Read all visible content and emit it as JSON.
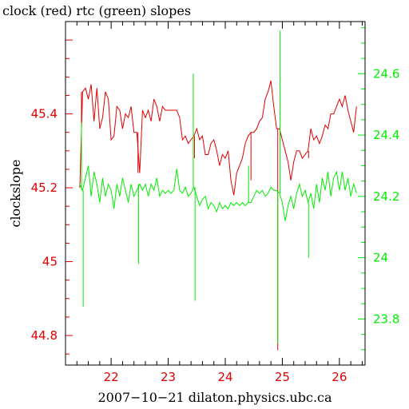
{
  "chart_data": {
    "type": "line",
    "title": "clock (red) rtc (green) slopes",
    "xlabel": "2007−10−21 dilaton.physics.ubc.ca",
    "ylabel": "clockslope",
    "xlim": [
      21.2,
      26.45
    ],
    "ylim_left": [
      44.72,
      45.65
    ],
    "ylim_right": [
      23.65,
      24.77
    ],
    "x_ticks": [
      22,
      23,
      24,
      25,
      26
    ],
    "y_ticks_left": [
      44.8,
      45,
      45.2,
      45.4
    ],
    "y_tick_labels_left": [
      "44.8",
      "45",
      "45.2",
      "45.4"
    ],
    "y_ticks_right": [
      23.8,
      24,
      24.2,
      24.4,
      24.6
    ],
    "y_tick_labels_right": [
      "23.8",
      "24",
      "24.2",
      "24.4",
      "24.6"
    ],
    "colors": {
      "clock": "#e00000",
      "rtc": "#00ee00",
      "frame": "#000000"
    },
    "series": [
      {
        "name": "clock",
        "axis": "left",
        "color": "#e00000",
        "x": [
          21.45,
          21.5,
          21.55,
          21.6,
          21.65,
          21.7,
          21.75,
          21.8,
          21.85,
          21.9,
          21.95,
          22.0,
          22.05,
          22.1,
          22.15,
          22.2,
          22.25,
          22.3,
          22.35,
          22.4,
          22.45,
          22.5,
          22.55,
          22.6,
          22.65,
          22.7,
          22.75,
          22.8,
          22.85,
          22.9,
          22.95,
          23.0,
          23.05,
          23.1,
          23.15,
          23.2,
          23.25,
          23.3,
          23.35,
          23.4,
          23.45,
          23.5,
          23.55,
          23.6,
          23.65,
          23.7,
          23.75,
          23.8,
          23.85,
          23.9,
          23.95,
          24.0,
          24.05,
          24.1,
          24.15,
          24.2,
          24.25,
          24.3,
          24.35,
          24.4,
          24.45,
          24.5,
          24.55,
          24.6,
          24.65,
          24.7,
          24.75,
          24.8,
          24.85,
          24.9,
          24.95,
          25.0,
          25.05,
          25.1,
          25.15,
          25.2,
          25.25,
          25.3,
          25.35,
          25.4,
          25.45,
          25.5,
          25.55,
          25.6,
          25.65,
          25.7,
          25.75,
          25.8,
          25.85,
          25.9,
          25.95,
          26.0,
          26.05,
          26.1,
          26.15,
          26.2,
          26.25,
          26.3
        ],
        "y": [
          45.2,
          45.46,
          45.47,
          45.44,
          45.48,
          45.38,
          45.47,
          45.36,
          45.39,
          45.46,
          45.44,
          45.33,
          45.34,
          45.42,
          45.41,
          45.36,
          45.4,
          45.39,
          45.42,
          45.35,
          45.35,
          45.24,
          45.41,
          45.39,
          45.41,
          45.38,
          45.44,
          45.42,
          45.38,
          45.42,
          45.41,
          45.41,
          45.41,
          45.41,
          45.41,
          45.39,
          45.33,
          45.34,
          45.32,
          45.33,
          45.34,
          45.36,
          45.33,
          45.34,
          45.29,
          45.29,
          45.32,
          45.33,
          45.3,
          45.26,
          45.29,
          45.28,
          45.3,
          45.22,
          45.18,
          45.24,
          45.26,
          45.28,
          45.32,
          45.34,
          45.35,
          45.35,
          45.36,
          45.38,
          45.39,
          45.44,
          45.46,
          45.49,
          45.42,
          45.36,
          45.36,
          45.33,
          45.3,
          45.27,
          45.22,
          45.27,
          45.3,
          45.3,
          45.28,
          45.29,
          45.3,
          45.36,
          45.33,
          45.34,
          45.32,
          45.34,
          45.37,
          45.36,
          45.4,
          45.4,
          45.42,
          45.44,
          45.42,
          45.45,
          45.41,
          45.38,
          45.35,
          45.42
        ]
      },
      {
        "name": "rtc",
        "axis": "right",
        "color": "#00ee00",
        "x": [
          21.45,
          21.5,
          21.55,
          21.6,
          21.65,
          21.7,
          21.75,
          21.8,
          21.85,
          21.9,
          21.95,
          22.0,
          22.05,
          22.1,
          22.15,
          22.2,
          22.25,
          22.3,
          22.35,
          22.4,
          22.45,
          22.5,
          22.55,
          22.6,
          22.65,
          22.7,
          22.75,
          22.8,
          22.85,
          22.9,
          22.95,
          23.0,
          23.05,
          23.1,
          23.15,
          23.2,
          23.25,
          23.3,
          23.35,
          23.4,
          23.45,
          23.5,
          23.55,
          23.6,
          23.65,
          23.7,
          23.75,
          23.8,
          23.85,
          23.9,
          23.95,
          24.0,
          24.05,
          24.1,
          24.15,
          24.2,
          24.25,
          24.3,
          24.35,
          24.4,
          24.45,
          24.5,
          24.55,
          24.6,
          24.65,
          24.7,
          24.75,
          24.8,
          24.85,
          24.9,
          24.95,
          25.0,
          25.05,
          25.1,
          25.15,
          25.2,
          25.25,
          25.3,
          25.35,
          25.4,
          25.45,
          25.5,
          25.55,
          25.6,
          25.65,
          25.7,
          25.75,
          25.8,
          25.85,
          25.9,
          25.95,
          26.0,
          26.05,
          26.1,
          26.15,
          26.2,
          26.25,
          26.3
        ],
        "y": [
          24.24,
          24.22,
          24.26,
          24.3,
          24.2,
          24.28,
          24.24,
          24.18,
          24.26,
          24.2,
          24.24,
          24.22,
          24.16,
          24.24,
          24.2,
          24.26,
          24.22,
          24.18,
          24.24,
          24.2,
          24.22,
          24.24,
          24.22,
          24.24,
          24.2,
          24.24,
          24.22,
          24.26,
          24.2,
          24.22,
          24.21,
          24.22,
          24.21,
          24.22,
          24.29,
          24.22,
          24.21,
          24.23,
          24.2,
          24.21,
          24.23,
          24.2,
          24.17,
          24.19,
          24.2,
          24.16,
          24.18,
          24.17,
          24.15,
          24.18,
          24.16,
          24.17,
          24.16,
          24.18,
          24.17,
          24.18,
          24.17,
          24.18,
          24.17,
          24.18,
          24.18,
          24.2,
          24.22,
          24.21,
          24.22,
          24.2,
          24.21,
          24.23,
          24.22,
          24.22,
          24.21,
          24.18,
          24.12,
          24.17,
          24.2,
          24.16,
          24.21,
          24.24,
          24.2,
          24.22,
          24.18,
          24.21,
          24.16,
          24.24,
          24.18,
          24.26,
          24.22,
          24.28,
          24.2,
          24.26,
          24.28,
          24.22,
          24.28,
          24.22,
          24.26,
          24.2,
          24.24,
          24.21
        ]
      }
    ],
    "spikes": [
      {
        "series": "clock",
        "x": [
          21.48,
          22.47,
          23.46,
          24.45,
          24.92,
          24.96,
          25.46
        ],
        "y": [
          45.22,
          45.24,
          45.28,
          45.22,
          44.76,
          45.32,
          45.28
        ]
      },
      {
        "series": "rtc",
        "x": [
          21.48,
          21.51,
          22.48,
          23.44,
          23.47,
          24.41,
          24.92,
          24.96,
          25.46
        ],
        "y": [
          24.44,
          23.84,
          23.98,
          24.6,
          23.86,
          24.3,
          23.72,
          24.74,
          24.0
        ]
      }
    ]
  }
}
